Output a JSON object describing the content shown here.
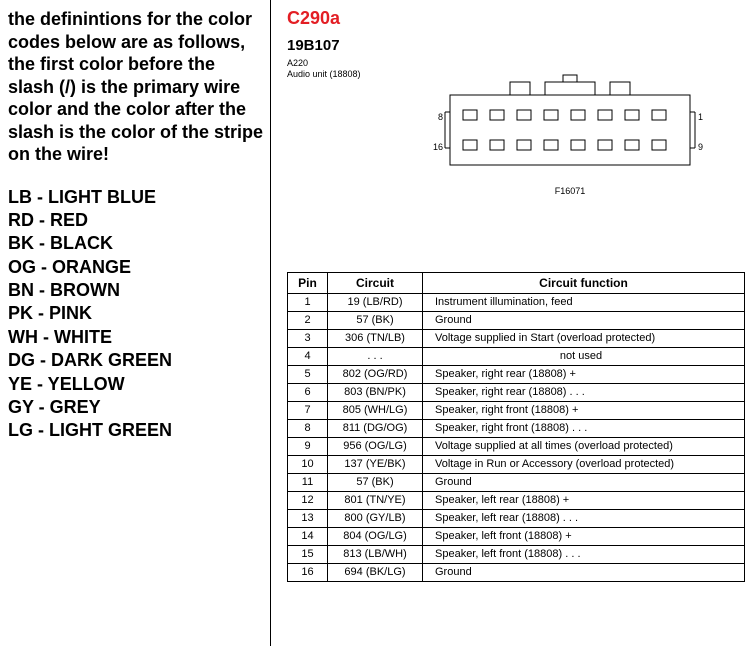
{
  "definitions_text": "the definintions for the color codes below are as follows,  the first color before the slash (/) is the primary wire color and the color after the slash is the color of the stripe on the wire!",
  "legend": [
    "LB - LIGHT BLUE",
    "RD - RED",
    "BK - BLACK",
    "OG - ORANGE",
    "BN - BROWN",
    "PK - PINK",
    "WH - WHITE",
    "DG - DARK GREEN",
    "YE - YELLOW",
    "GY - GREY",
    "LG - LIGHT GREEN"
  ],
  "connector": {
    "id": "C290a",
    "subid": "19B107",
    "ref1": "A220",
    "ref2": "Audio unit (18808)",
    "fig": "F16071",
    "corner_labels": {
      "tl": "8",
      "tr": "1",
      "bl": "16",
      "br": "9"
    },
    "id_color": "#e31e24"
  },
  "table": {
    "headers": [
      "Pin",
      "Circuit",
      "Circuit function"
    ],
    "rows": [
      {
        "pin": "1",
        "circuit": "19 (LB/RD)",
        "func": "Instrument illumination, feed"
      },
      {
        "pin": "2",
        "circuit": "57 (BK)",
        "func": "Ground"
      },
      {
        "pin": "3",
        "circuit": "306 (TN/LB)",
        "func": "Voltage supplied in Start (overload protected)"
      },
      {
        "pin": "4",
        "circuit": ".  .  .",
        "func": "not used",
        "center": true
      },
      {
        "pin": "5",
        "circuit": "802 (OG/RD)",
        "func": "Speaker, right rear (18808) +"
      },
      {
        "pin": "6",
        "circuit": "803 (BN/PK)",
        "func": "Speaker, right rear (18808) .  .  ."
      },
      {
        "pin": "7",
        "circuit": "805 (WH/LG)",
        "func": "Speaker, right front (18808) +"
      },
      {
        "pin": "8",
        "circuit": "811 (DG/OG)",
        "func": "Speaker, right front (18808) .  .  ."
      },
      {
        "pin": "9",
        "circuit": "956 (OG/LG)",
        "func": "Voltage supplied at all times (overload protected)"
      },
      {
        "pin": "10",
        "circuit": "137 (YE/BK)",
        "func": "Voltage in Run or Accessory (overload protected)"
      },
      {
        "pin": "11",
        "circuit": "57 (BK)",
        "func": "Ground"
      },
      {
        "pin": "12",
        "circuit": "801 (TN/YE)",
        "func": "Speaker, left rear (18808) +"
      },
      {
        "pin": "13",
        "circuit": "800 (GY/LB)",
        "func": "Speaker, left rear (18808) .  .  ."
      },
      {
        "pin": "14",
        "circuit": "804 (OG/LG)",
        "func": "Speaker, left front (18808) +"
      },
      {
        "pin": "15",
        "circuit": "813 (LB/WH)",
        "func": "Speaker, left front (18808) .  .  ."
      },
      {
        "pin": "16",
        "circuit": "694 (BK/LG)",
        "func": "Ground"
      }
    ]
  },
  "style": {
    "bg": "#ffffff",
    "text": "#000000",
    "border": "#000000",
    "def_fontsize": 18,
    "legend_fontsize": 18,
    "table_fontsize": 11
  }
}
